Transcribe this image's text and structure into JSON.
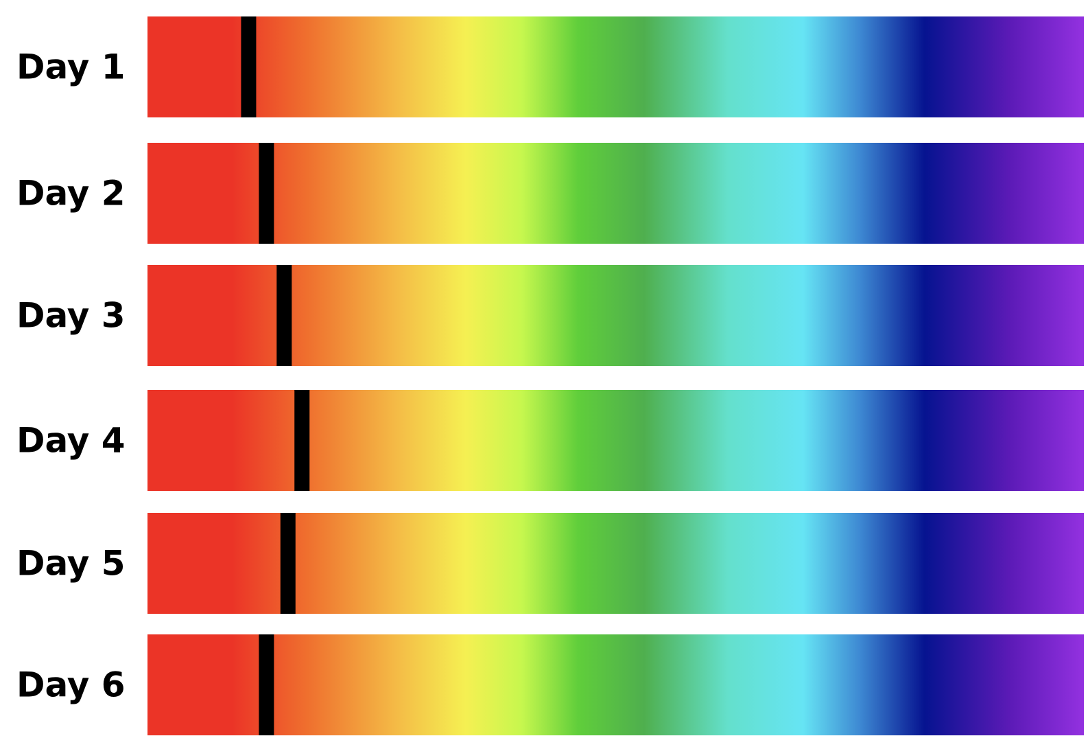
{
  "chart_data": {
    "type": "bar",
    "title": "",
    "xlabel": "",
    "ylabel": "",
    "xlim": [
      0,
      1
    ],
    "grid": false,
    "legend": "none",
    "categories": [
      "Day 1",
      "Day 2",
      "Day 3",
      "Day 4",
      "Day 5",
      "Day 6"
    ],
    "values": [
      0.108,
      0.127,
      0.146,
      0.165,
      0.15,
      0.127
    ],
    "colors": {
      "marker": "#000000",
      "gradient": [
        {
          "stop": 0.0,
          "color": "#EB3427"
        },
        {
          "stop": 0.09,
          "color": "#EB3427"
        },
        {
          "stop": 0.17,
          "color": "#EF6F2E"
        },
        {
          "stop": 0.27,
          "color": "#F4BE47"
        },
        {
          "stop": 0.34,
          "color": "#F5F052"
        },
        {
          "stop": 0.4,
          "color": "#C6F74E"
        },
        {
          "stop": 0.46,
          "color": "#60CE3B"
        },
        {
          "stop": 0.53,
          "color": "#4FAF4E"
        },
        {
          "stop": 0.62,
          "color": "#64E0CC"
        },
        {
          "stop": 0.7,
          "color": "#66E4F4"
        },
        {
          "stop": 0.76,
          "color": "#3E8AD3"
        },
        {
          "stop": 0.83,
          "color": "#061390"
        },
        {
          "stop": 0.92,
          "color": "#5B1AB6"
        },
        {
          "stop": 1.0,
          "color": "#9331E0"
        }
      ]
    }
  }
}
